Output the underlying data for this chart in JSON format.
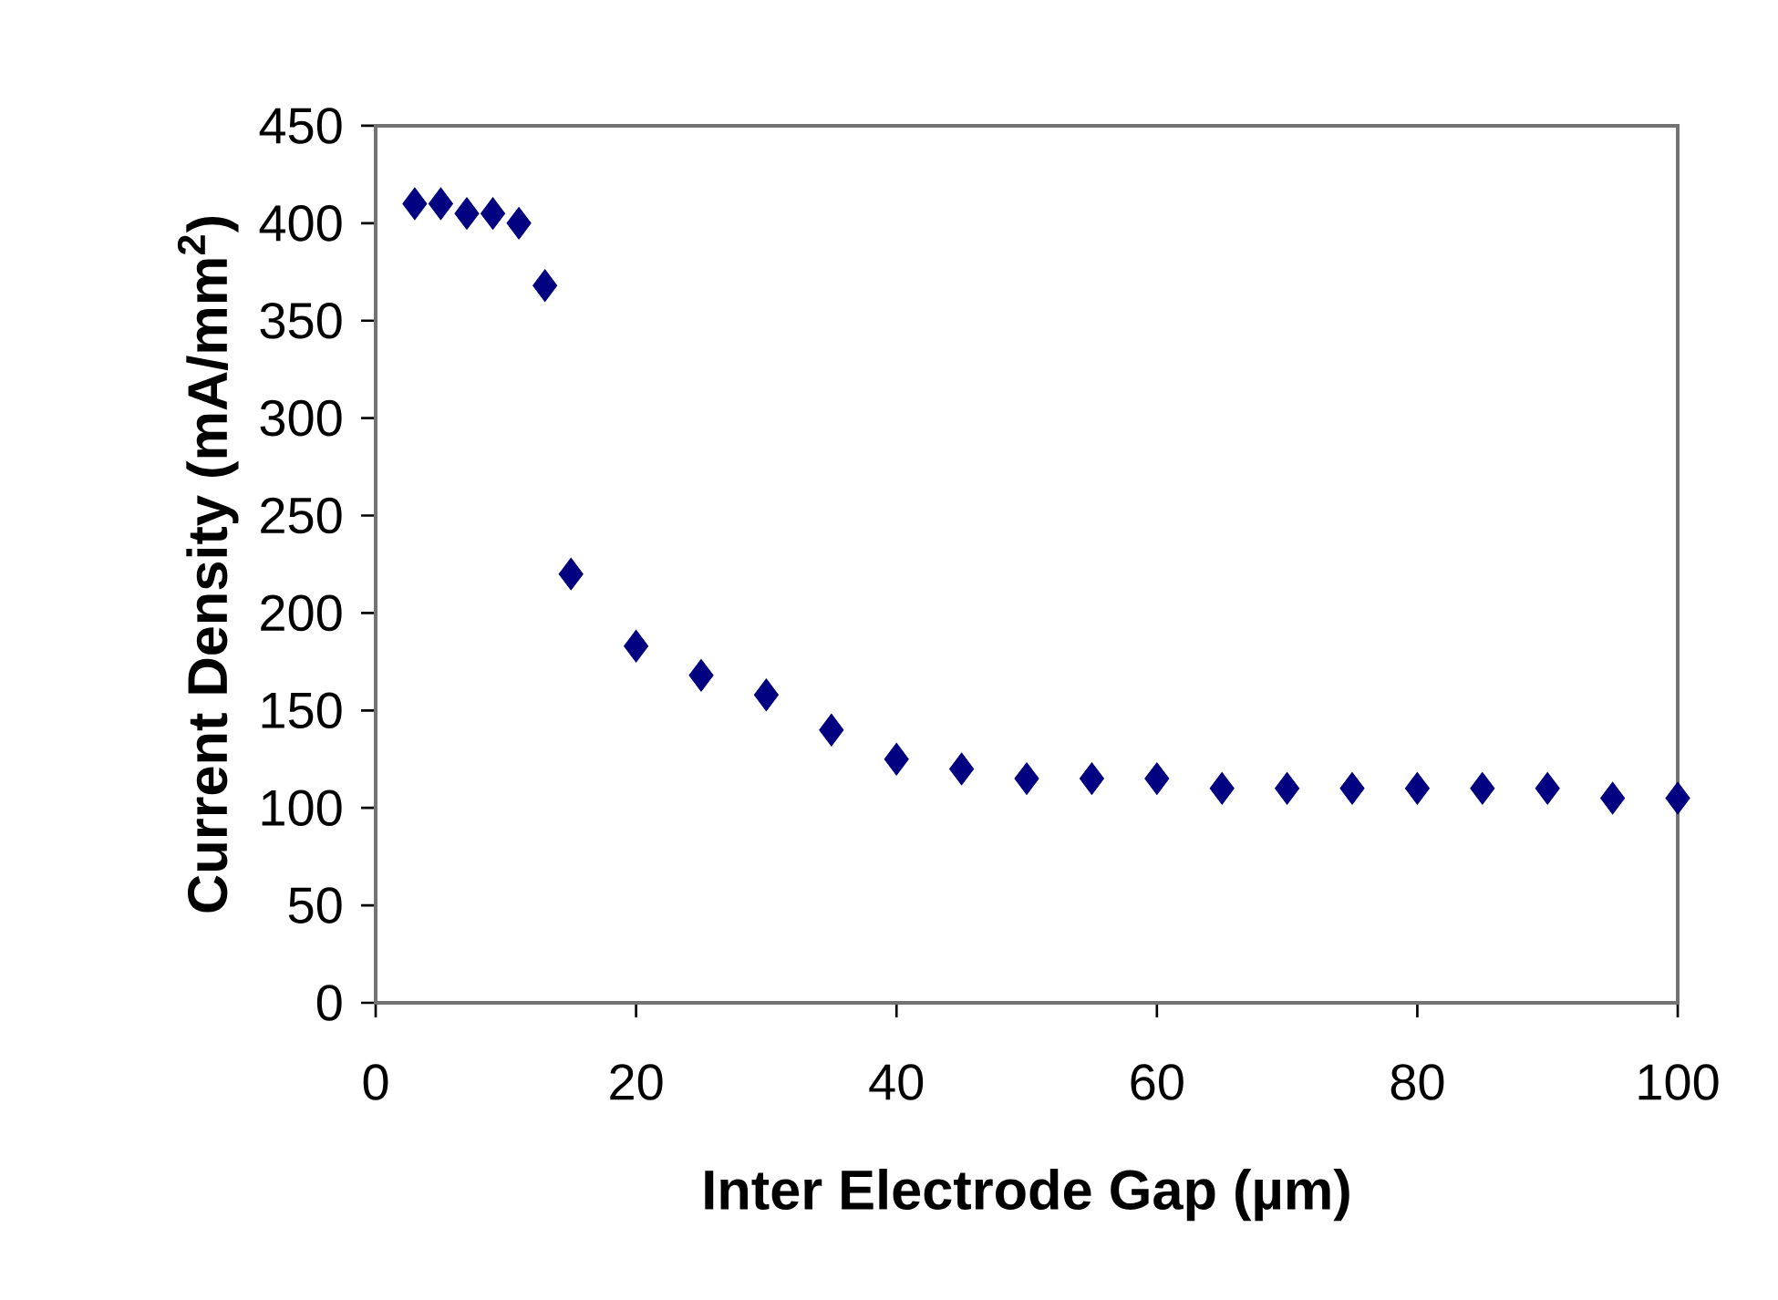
{
  "chart_data": {
    "type": "scatter",
    "xlabel": "Inter Electrode Gap (µm)",
    "ylabel": "Current Density (mA/mm$^{2}$)",
    "x": [
      3,
      5,
      7,
      9,
      11,
      13,
      15,
      20,
      25,
      30,
      35,
      40,
      45,
      50,
      55,
      60,
      65,
      70,
      75,
      80,
      85,
      90,
      95,
      100
    ],
    "series": [
      {
        "color": "#000080",
        "values": [
          410,
          410,
          405,
          405,
          400,
          368,
          220,
          183,
          168,
          158,
          140,
          125,
          120,
          115,
          115,
          115,
          110,
          110,
          110,
          110,
          110,
          110,
          105,
          105
        ]
      }
    ],
    "xlim": [
      0,
      100
    ],
    "ylim": [
      0,
      450
    ],
    "xticks": [
      0,
      20,
      40,
      60,
      80,
      100
    ],
    "yticks": [
      0,
      50,
      100,
      150,
      200,
      250,
      300,
      350,
      400,
      450
    ],
    "marker": "diamond",
    "grid": false
  }
}
